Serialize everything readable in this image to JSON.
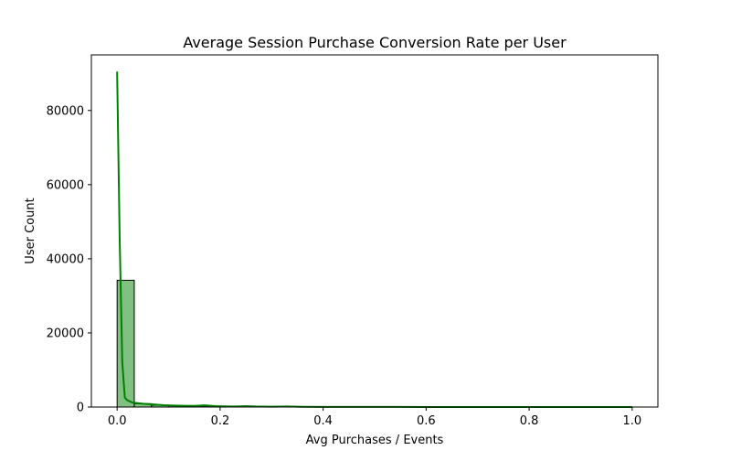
{
  "chart_data": {
    "type": "histogram",
    "title": "Average Session Purchase Conversion Rate per User",
    "xlabel": "Avg Purchases / Events",
    "ylabel": "User Count",
    "xlim": [
      -0.05,
      1.05
    ],
    "ylim": [
      0,
      95000
    ],
    "x_ticks": [
      0.0,
      0.2,
      0.4,
      0.6,
      0.8,
      1.0
    ],
    "x_tick_labels": [
      "0.0",
      "0.2",
      "0.4",
      "0.6",
      "0.8",
      "1.0"
    ],
    "y_ticks": [
      0,
      20000,
      40000,
      60000,
      80000
    ],
    "y_tick_labels": [
      "0",
      "20000",
      "40000",
      "60000",
      "80000"
    ],
    "bin_width": 0.0333,
    "bins": [
      {
        "x0": 0.0,
        "x1": 0.0333,
        "count": 34200
      },
      {
        "x0": 0.0333,
        "x1": 0.0667,
        "count": 900
      },
      {
        "x0": 0.0667,
        "x1": 0.1,
        "count": 500
      },
      {
        "x0": 0.1,
        "x1": 0.1333,
        "count": 350
      },
      {
        "x0": 0.1333,
        "x1": 0.1667,
        "count": 200
      },
      {
        "x0": 0.1667,
        "x1": 0.2,
        "count": 250
      },
      {
        "x0": 0.2,
        "x1": 0.2333,
        "count": 120
      },
      {
        "x0": 0.2333,
        "x1": 0.2667,
        "count": 180
      },
      {
        "x0": 0.2667,
        "x1": 0.3,
        "count": 60
      },
      {
        "x0": 0.3,
        "x1": 0.3333,
        "count": 40
      },
      {
        "x0": 0.3333,
        "x1": 0.3667,
        "count": 110
      },
      {
        "x0": 0.3667,
        "x1": 0.4,
        "count": 20
      },
      {
        "x0": 0.4,
        "x1": 0.4333,
        "count": 15
      },
      {
        "x0": 0.4333,
        "x1": 0.4667,
        "count": 10
      },
      {
        "x0": 0.4667,
        "x1": 0.5,
        "count": 10
      },
      {
        "x0": 0.5,
        "x1": 0.5333,
        "count": 50
      },
      {
        "x0": 0.5333,
        "x1": 0.5667,
        "count": 5
      },
      {
        "x0": 0.5667,
        "x1": 0.6,
        "count": 5
      },
      {
        "x0": 0.6,
        "x1": 0.6333,
        "count": 5
      },
      {
        "x0": 0.6333,
        "x1": 0.6667,
        "count": 10
      },
      {
        "x0": 0.6667,
        "x1": 0.7,
        "count": 5
      },
      {
        "x0": 0.7,
        "x1": 0.7333,
        "count": 3
      },
      {
        "x0": 0.7333,
        "x1": 0.7667,
        "count": 3
      },
      {
        "x0": 0.7667,
        "x1": 0.8,
        "count": 3
      },
      {
        "x0": 0.8,
        "x1": 0.8333,
        "count": 3
      },
      {
        "x0": 0.8333,
        "x1": 0.8667,
        "count": 3
      },
      {
        "x0": 0.8667,
        "x1": 0.9,
        "count": 3
      },
      {
        "x0": 0.9,
        "x1": 0.9333,
        "count": 3
      },
      {
        "x0": 0.9333,
        "x1": 0.9667,
        "count": 3
      },
      {
        "x0": 0.9667,
        "x1": 1.0,
        "count": 20
      }
    ],
    "kde": {
      "x": [
        0.0,
        0.005,
        0.01,
        0.015,
        0.02,
        0.03,
        0.05,
        0.07,
        0.09,
        0.11,
        0.13,
        0.15,
        0.17,
        0.19,
        0.21,
        0.23,
        0.25,
        0.27,
        0.3,
        0.33,
        0.36,
        0.4,
        0.45,
        0.5,
        0.55,
        0.6,
        0.7,
        0.8,
        0.9,
        1.0
      ],
      "y": [
        90500,
        45000,
        12000,
        2500,
        1800,
        1200,
        900,
        700,
        500,
        400,
        350,
        300,
        450,
        250,
        200,
        150,
        250,
        150,
        100,
        150,
        60,
        40,
        30,
        40,
        20,
        15,
        10,
        8,
        5,
        5
      ]
    },
    "colors": {
      "bar_fill": "#80c080",
      "bar_edge": "#000000",
      "kde_line": "#008000",
      "axes": "#000000"
    },
    "grid": false,
    "legend": "none"
  }
}
